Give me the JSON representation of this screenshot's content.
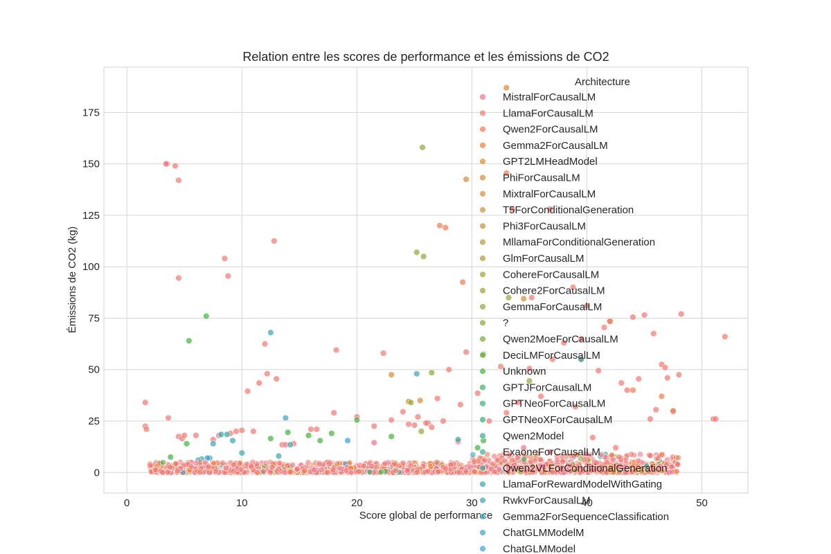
{
  "chart_data": {
    "type": "scatter",
    "title": "Relation entre les scores de performance et les émissions de CO2",
    "xlabel": "Score global de performance",
    "ylabel": "Émissions de CO2 (kg)",
    "xlim": [
      -2,
      54
    ],
    "ylim": [
      -10,
      197
    ],
    "xticks": [
      0,
      10,
      20,
      30,
      40,
      50
    ],
    "yticks": [
      0,
      25,
      50,
      75,
      100,
      125,
      150,
      175
    ],
    "grid": true,
    "legend": {
      "title": "Architecture",
      "placement": "top-right",
      "entries": [
        {
          "label": "MistralForCausalLM",
          "color": "#f77189"
        },
        {
          "label": "LlamaForCausalLM",
          "color": "#f7756d"
        },
        {
          "label": "Qwen2ForCausalLM",
          "color": "#f6794e"
        },
        {
          "label": "Gemma2ForCausalLM",
          "color": "#f37e2e"
        },
        {
          "label": "GPT2LMHeadModel",
          "color": "#e7851f"
        },
        {
          "label": "PhiForCausalLM",
          "color": "#dc8932"
        },
        {
          "label": "MixtralForCausalLM",
          "color": "#d28e32"
        },
        {
          "label": "T5ForConditionalGeneration",
          "color": "#c89232"
        },
        {
          "label": "Phi3ForCausalLM",
          "color": "#bf9532"
        },
        {
          "label": "MllamaForConditionalGeneration",
          "color": "#b69932"
        },
        {
          "label": "GlmForCausalLM",
          "color": "#ad9c32"
        },
        {
          "label": "CohereForCausalLM",
          "color": "#a49f32"
        },
        {
          "label": "Cohere2ForCausalLM",
          "color": "#9aa232"
        },
        {
          "label": "GemmaForCausalLM",
          "color": "#8fa632"
        },
        {
          "label": "?",
          "color": "#82a932"
        },
        {
          "label": "Qwen2MoeForCausalLM",
          "color": "#72ad32"
        },
        {
          "label": "DeciLMForCausalLM",
          "color": "#5db032"
        },
        {
          "label": "Unknown",
          "color": "#40b33c"
        },
        {
          "label": "GPTJForCausalLM",
          "color": "#33b25e"
        },
        {
          "label": "GPTNeoForCausalLM",
          "color": "#34b073"
        },
        {
          "label": "GPTNeoXForCausalLM",
          "color": "#35ae82"
        },
        {
          "label": "Qwen2Model",
          "color": "#35ad8e"
        },
        {
          "label": "ExaoneForCausalLM",
          "color": "#36ab98"
        },
        {
          "label": "Qwen2VLForConditionalGeneration",
          "color": "#36aaa1"
        },
        {
          "label": "LlamaForRewardModelWithGating",
          "color": "#37a8a9"
        },
        {
          "label": "RwkvForCausalLM",
          "color": "#37a7b1"
        },
        {
          "label": "Gemma2ForSequenceClassification",
          "color": "#38a5ba"
        },
        {
          "label": "ChatGLMModelM",
          "color": "#39a3c4"
        },
        {
          "label": "ChatGLMModel",
          "color": "#3aa1d0"
        }
      ]
    },
    "series": [
      {
        "name": "LlamaForCausalLM",
        "x": [
          3.5,
          4.2,
          4.5,
          4.5,
          8.5,
          8.8,
          12.0,
          12.8,
          10.5,
          11.5,
          12.2,
          13.0,
          18.2,
          22.3,
          1.6,
          1.6,
          1.7,
          3.6,
          4.5,
          4.8,
          10.0,
          9.5,
          16.5,
          25.3,
          26.2,
          33.5,
          35.2,
          36.8,
          38.8,
          40.0,
          42.0,
          43.0,
          44.0,
          44.5,
          45.0,
          45.8,
          46.5,
          46.8,
          47.0,
          48.0,
          48.2,
          51.0,
          51.2,
          52.0,
          41.5,
          41.0,
          39.5,
          38.0,
          35.0,
          32.5,
          30.5,
          29.5,
          37.0,
          28.0,
          27.0,
          26.5,
          24.5,
          23.0,
          25.0,
          36.0,
          34.0,
          43.5,
          45.5,
          47.5,
          46.0,
          42.5,
          40.5,
          39.0,
          33.0,
          31.5,
          29.0,
          27.5,
          26.0,
          24.0,
          21.5,
          20.0,
          18.0,
          16.0,
          14.5,
          13.5,
          11.0,
          9.0,
          7.5,
          6.0,
          5.0
        ],
        "y": [
          150,
          149,
          142,
          94.5,
          104,
          95.5,
          62.5,
          112.5,
          39.5,
          43.5,
          48,
          45.5,
          59.5,
          58,
          34,
          22.5,
          21,
          26.5,
          17.5,
          16.5,
          20.5,
          20,
          21,
          27,
          24,
          128,
          85,
          128,
          90,
          81,
          73.5,
          43.5,
          75.5,
          45.5,
          76.5,
          67.5,
          52.5,
          51,
          46,
          47.5,
          77,
          26,
          26,
          66,
          70.5,
          49.5,
          65,
          63,
          50.5,
          51.5,
          38.5,
          58.5,
          55,
          50,
          36,
          22,
          23.5,
          25.5,
          23,
          37,
          34,
          40,
          26,
          29.5,
          30.5,
          12,
          17,
          32,
          29,
          25,
          33,
          25,
          24,
          29.5,
          22.5,
          27,
          29,
          21,
          14,
          13.5,
          20,
          19,
          16,
          18,
          18
        ]
      },
      {
        "name": "MistralForCausalLM",
        "x": [
          3.4,
          8.0,
          13.8,
          21.5,
          28.8,
          34.5,
          36.8
        ],
        "y": [
          150,
          18,
          13.5,
          14.5,
          15,
          12,
          10
        ]
      },
      {
        "name": "Qwen2ForCausalLM",
        "x": [
          27.2,
          27.7,
          29.2,
          33.0,
          39.5,
          42.0,
          44.0,
          46.5,
          47.5
        ],
        "y": [
          120,
          119,
          92.5,
          145.5,
          55,
          73.5,
          40,
          37,
          30
        ]
      },
      {
        "name": "PhiForCausalLM",
        "x": [
          33.0,
          29.5,
          34.5,
          25.5,
          23.0,
          24.5
        ],
        "y": [
          187,
          142.5,
          84.5,
          35,
          47.5,
          34.5
        ]
      },
      {
        "name": "GemmaForCausalLM",
        "x": [
          25.7,
          25.2,
          25.8,
          33.2,
          35.0,
          26.5,
          24.7,
          31.0,
          25.6
        ],
        "y": [
          158,
          107,
          105,
          85,
          44.5,
          48.5,
          34,
          57.5,
          20
        ]
      },
      {
        "name": "Unknown",
        "x": [
          6.9,
          5.4,
          3.8,
          5.2,
          12.5,
          14.0,
          15.8,
          16.8,
          17.8,
          20.0,
          23.0,
          30.5,
          31.0
        ],
        "y": [
          76,
          64,
          7.5,
          14,
          16.5,
          19.5,
          18,
          15.5,
          19,
          25.5,
          17.5,
          12,
          15.5
        ]
      },
      {
        "name": "RwkvForCausalLM",
        "x": [
          12.5,
          25.2,
          39.5,
          9.2,
          10.0,
          6.5,
          7.5,
          6.2,
          7.2,
          13.2
        ],
        "y": [
          68,
          48,
          55,
          15.5,
          9.5,
          6.5,
          14,
          6,
          7,
          8
        ]
      },
      {
        "name": "ChatGLMModel",
        "x": [
          13.8,
          19.2,
          38.8,
          3.8,
          7.0,
          8.0
        ],
        "y": [
          26.5,
          15.5,
          7.5,
          3,
          7,
          1.5
        ]
      },
      {
        "name": "Qwen2VLForConditionalGeneration",
        "x": [
          8.2,
          14.2,
          8.7,
          28.8
        ],
        "y": [
          18.5,
          13.5,
          18.5,
          16
        ]
      }
    ]
  }
}
